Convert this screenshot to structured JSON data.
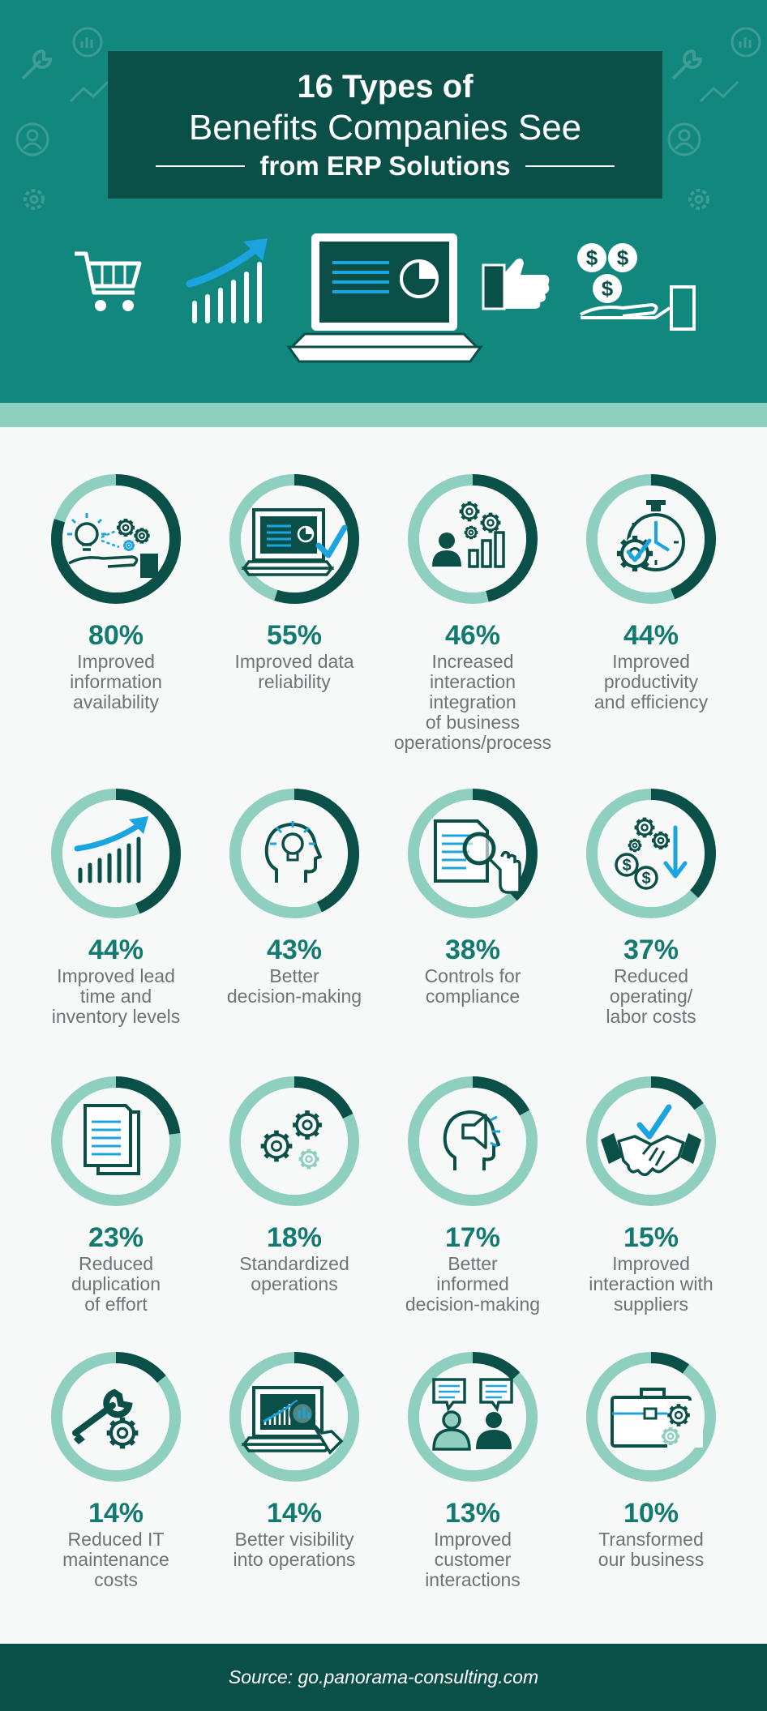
{
  "header": {
    "title_line1": "16 Types of",
    "title_line2": "Benefits Companies See",
    "title_line3": "from ERP Solutions"
  },
  "hero_icons": [
    "shopping-cart-icon",
    "growth-chart-icon",
    "laptop-dashboard-icon",
    "thumbs-up-icon",
    "money-hand-icon"
  ],
  "benefits": [
    {
      "percent": "80%",
      "label_lines": [
        "Improved",
        "information",
        "availability"
      ],
      "value": 80,
      "icon": "lightbulb-gears-hand-icon"
    },
    {
      "percent": "55%",
      "label_lines": [
        "Improved data",
        "reliability"
      ],
      "value": 55,
      "icon": "laptop-check-icon"
    },
    {
      "percent": "46%",
      "label_lines": [
        "Increased",
        "interaction",
        "integration",
        "of business",
        "operations/process"
      ],
      "value": 46,
      "icon": "person-gears-chart-icon"
    },
    {
      "percent": "44%",
      "label_lines": [
        "Improved",
        "productivity",
        "and efficiency"
      ],
      "value": 44,
      "icon": "stopwatch-gear-icon"
    },
    {
      "percent": "44%",
      "label_lines": [
        "Improved lead",
        "time and",
        "inventory levels"
      ],
      "value": 44,
      "icon": "trend-bars-icon"
    },
    {
      "percent": "43%",
      "label_lines": [
        "Better",
        "decision-making"
      ],
      "value": 43,
      "icon": "head-lightbulb-icon"
    },
    {
      "percent": "38%",
      "label_lines": [
        "Controls for",
        "compliance"
      ],
      "value": 38,
      "icon": "document-magnifier-icon"
    },
    {
      "percent": "37%",
      "label_lines": [
        "Reduced",
        "operating/",
        "labor costs"
      ],
      "value": 37,
      "icon": "coins-down-arrow-icon"
    },
    {
      "percent": "23%",
      "label_lines": [
        "Reduced",
        "duplication",
        "of effort"
      ],
      "value": 23,
      "icon": "duplicate-documents-icon"
    },
    {
      "percent": "18%",
      "label_lines": [
        "Standardized",
        "operations"
      ],
      "value": 18,
      "icon": "gears-icon"
    },
    {
      "percent": "17%",
      "label_lines": [
        "Better",
        "informed",
        "decision-making"
      ],
      "value": 17,
      "icon": "head-megaphone-icon"
    },
    {
      "percent": "15%",
      "label_lines": [
        "Improved",
        "interaction with",
        "suppliers"
      ],
      "value": 15,
      "icon": "handshake-check-icon"
    },
    {
      "percent": "14%",
      "label_lines": [
        "Reduced IT",
        "maintenance",
        "costs"
      ],
      "value": 14,
      "icon": "wrench-gear-icon"
    },
    {
      "percent": "14%",
      "label_lines": [
        "Better visibility",
        "into operations"
      ],
      "value": 14,
      "icon": "laptop-magnifier-icon"
    },
    {
      "percent": "13%",
      "label_lines": [
        "Improved",
        "customer",
        "interactions"
      ],
      "value": 13,
      "icon": "people-chat-icon"
    },
    {
      "percent": "10%",
      "label_lines": [
        "Transformed",
        "our business"
      ],
      "value": 10,
      "icon": "briefcase-gears-icon"
    }
  ],
  "footer": {
    "source": "Source: go.panorama-consulting.com"
  },
  "colors": {
    "header_bg": "#12877d",
    "title_box": "#0b5048",
    "ring_dark": "#0b5048",
    "ring_light": "#8fcfc0",
    "accent_blue": "#1ba4e0",
    "percent_text": "#127a70",
    "label_text": "#6e7476"
  }
}
